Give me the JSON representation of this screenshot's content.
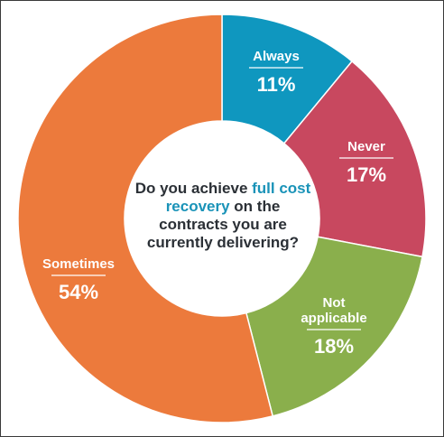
{
  "chart_data": {
    "type": "pie",
    "donut": true,
    "question": {
      "before": "Do you achieve ",
      "highlight": "full cost recovery",
      "after": " on the contracts you are currently delivering?"
    },
    "slices": [
      {
        "label": "Always",
        "value": 11,
        "display": "11%",
        "color": "#0f97bf"
      },
      {
        "label": "Never",
        "value": 17,
        "display": "17%",
        "color": "#c8485f"
      },
      {
        "label": "Not applicable",
        "value": 18,
        "display": "18%",
        "color": "#8aaf4c"
      },
      {
        "label": "Sometimes",
        "value": 54,
        "display": "54%",
        "color": "#ec7a3c"
      }
    ],
    "highlight_color": "#1a93b8",
    "text_color": "#2b3036"
  }
}
